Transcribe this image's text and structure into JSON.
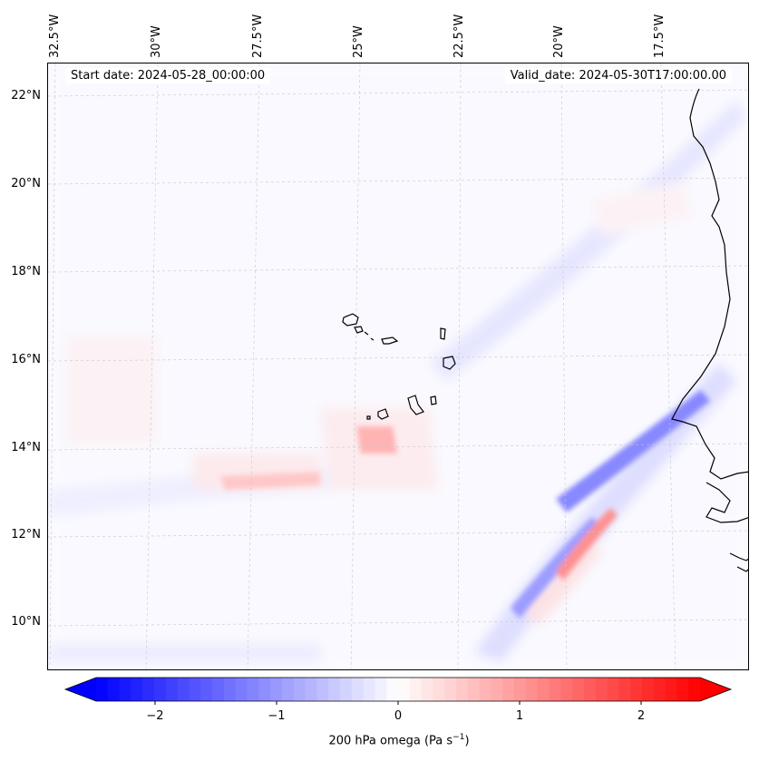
{
  "map": {
    "start_date": "Start date: 2024-05-28_00:00:00",
    "valid_date": "Valid_date: 2024-05-30T17:00:00.00",
    "lat_labels": [
      "22°N",
      "20°N",
      "18°N",
      "16°N",
      "14°N",
      "12°N",
      "10°N"
    ],
    "lon_labels": [
      "32.5°W",
      "30°W",
      "27.5°W",
      "25°W",
      "22.5°W",
      "20°W",
      "17.5°W"
    ],
    "field": "200 hPa omega",
    "colormap": "bwr",
    "negative_color": "#0000ff",
    "positive_color": "#ff0000"
  },
  "colorbar": {
    "label_prefix": "200 hPa omega (Pa s",
    "label_sup": "−1",
    "label_suffix": ")",
    "tick_labels": [
      "−2",
      "−1",
      "0",
      "1",
      "2"
    ],
    "ticks": [
      -2,
      -1,
      0,
      1,
      2
    ],
    "vmin": -2.6,
    "vmax": 2.6,
    "extend": "both"
  }
}
